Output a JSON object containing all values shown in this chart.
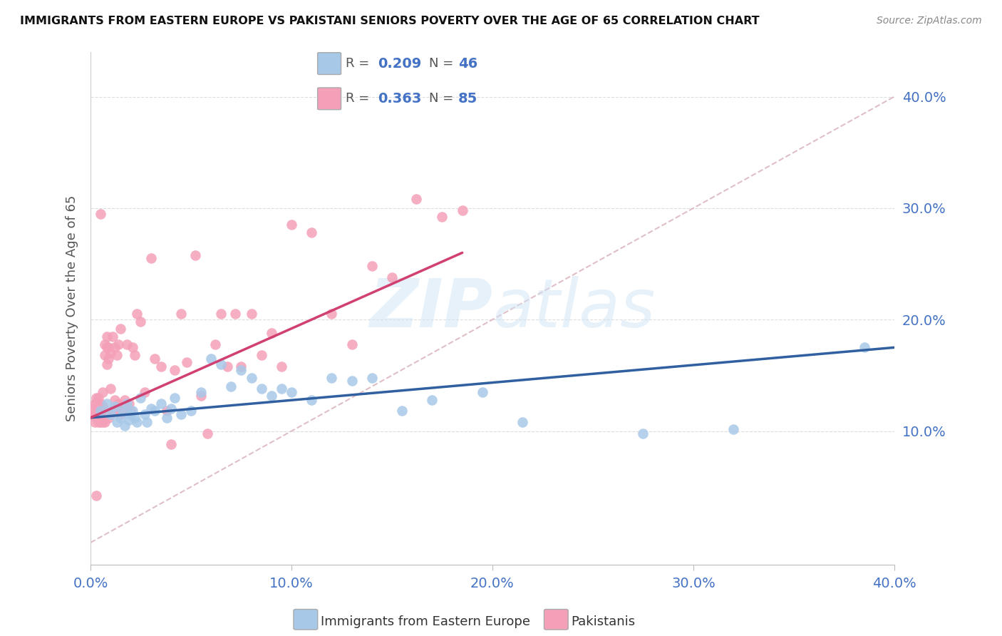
{
  "title": "IMMIGRANTS FROM EASTERN EUROPE VS PAKISTANI SENIORS POVERTY OVER THE AGE OF 65 CORRELATION CHART",
  "source": "Source: ZipAtlas.com",
  "ylabel": "Seniors Poverty Over the Age of 65",
  "xlim": [
    0.0,
    0.4
  ],
  "ylim": [
    -0.02,
    0.44
  ],
  "xticks": [
    0.0,
    0.1,
    0.2,
    0.3,
    0.4
  ],
  "yticks": [
    0.1,
    0.2,
    0.3,
    0.4
  ],
  "xtick_labels": [
    "0.0%",
    "10.0%",
    "20.0%",
    "30.0%",
    "40.0%"
  ],
  "ytick_labels": [
    "10.0%",
    "20.0%",
    "30.0%",
    "40.0%"
  ],
  "legend_labels": [
    "Immigrants from Eastern Europe",
    "Pakistanis"
  ],
  "blue_color": "#a8c8e8",
  "pink_color": "#f4a0b8",
  "blue_line_color": "#3060a0",
  "pink_line_color": "#d04070",
  "dashed_line_color": "#d8b0b8",
  "watermark_zip": "ZIP",
  "watermark_atlas": "atlas",
  "R_blue": 0.209,
  "N_blue": 46,
  "R_pink": 0.363,
  "N_pink": 85,
  "blue_scatter_x": [
    0.005,
    0.008,
    0.01,
    0.012,
    0.013,
    0.015,
    0.016,
    0.017,
    0.018,
    0.019,
    0.02,
    0.021,
    0.022,
    0.023,
    0.025,
    0.027,
    0.028,
    0.03,
    0.032,
    0.035,
    0.038,
    0.04,
    0.042,
    0.045,
    0.05,
    0.055,
    0.06,
    0.065,
    0.07,
    0.075,
    0.08,
    0.085,
    0.09,
    0.095,
    0.1,
    0.11,
    0.12,
    0.13,
    0.14,
    0.155,
    0.17,
    0.195,
    0.215,
    0.275,
    0.32,
    0.385
  ],
  "blue_scatter_y": [
    0.118,
    0.125,
    0.115,
    0.122,
    0.108,
    0.112,
    0.118,
    0.105,
    0.125,
    0.11,
    0.115,
    0.118,
    0.112,
    0.108,
    0.13,
    0.115,
    0.108,
    0.12,
    0.118,
    0.125,
    0.112,
    0.12,
    0.13,
    0.115,
    0.118,
    0.135,
    0.165,
    0.16,
    0.14,
    0.155,
    0.148,
    0.138,
    0.132,
    0.138,
    0.135,
    0.128,
    0.148,
    0.145,
    0.148,
    0.118,
    0.128,
    0.135,
    0.108,
    0.098,
    0.102,
    0.175
  ],
  "pink_scatter_x": [
    0.001,
    0.002,
    0.002,
    0.002,
    0.003,
    0.003,
    0.003,
    0.003,
    0.004,
    0.004,
    0.004,
    0.004,
    0.005,
    0.005,
    0.005,
    0.005,
    0.005,
    0.006,
    0.006,
    0.006,
    0.006,
    0.007,
    0.007,
    0.007,
    0.007,
    0.008,
    0.008,
    0.008,
    0.008,
    0.009,
    0.009,
    0.009,
    0.01,
    0.01,
    0.01,
    0.011,
    0.011,
    0.012,
    0.012,
    0.013,
    0.013,
    0.014,
    0.014,
    0.015,
    0.015,
    0.016,
    0.017,
    0.018,
    0.019,
    0.02,
    0.021,
    0.022,
    0.023,
    0.025,
    0.027,
    0.03,
    0.032,
    0.035,
    0.038,
    0.04,
    0.042,
    0.045,
    0.048,
    0.052,
    0.055,
    0.058,
    0.062,
    0.065,
    0.068,
    0.072,
    0.075,
    0.08,
    0.085,
    0.09,
    0.095,
    0.1,
    0.11,
    0.12,
    0.13,
    0.14,
    0.15,
    0.162,
    0.175,
    0.185,
    0.003
  ],
  "pink_scatter_y": [
    0.118,
    0.108,
    0.115,
    0.125,
    0.112,
    0.118,
    0.125,
    0.13,
    0.108,
    0.115,
    0.12,
    0.13,
    0.108,
    0.115,
    0.12,
    0.125,
    0.295,
    0.108,
    0.115,
    0.122,
    0.135,
    0.108,
    0.115,
    0.168,
    0.178,
    0.115,
    0.16,
    0.175,
    0.185,
    0.112,
    0.165,
    0.175,
    0.115,
    0.17,
    0.138,
    0.118,
    0.185,
    0.128,
    0.175,
    0.122,
    0.168,
    0.125,
    0.178,
    0.115,
    0.192,
    0.12,
    0.128,
    0.178,
    0.125,
    0.118,
    0.175,
    0.168,
    0.205,
    0.198,
    0.135,
    0.255,
    0.165,
    0.158,
    0.118,
    0.088,
    0.155,
    0.205,
    0.162,
    0.258,
    0.132,
    0.098,
    0.178,
    0.205,
    0.158,
    0.205,
    0.158,
    0.205,
    0.168,
    0.188,
    0.158,
    0.285,
    0.278,
    0.205,
    0.178,
    0.248,
    0.238,
    0.308,
    0.292,
    0.298,
    0.042
  ],
  "blue_regline": [
    0.0,
    0.4
  ],
  "blue_regline_y": [
    0.112,
    0.175
  ],
  "pink_regline": [
    0.0,
    0.185
  ],
  "pink_regline_y": [
    0.112,
    0.26
  ]
}
